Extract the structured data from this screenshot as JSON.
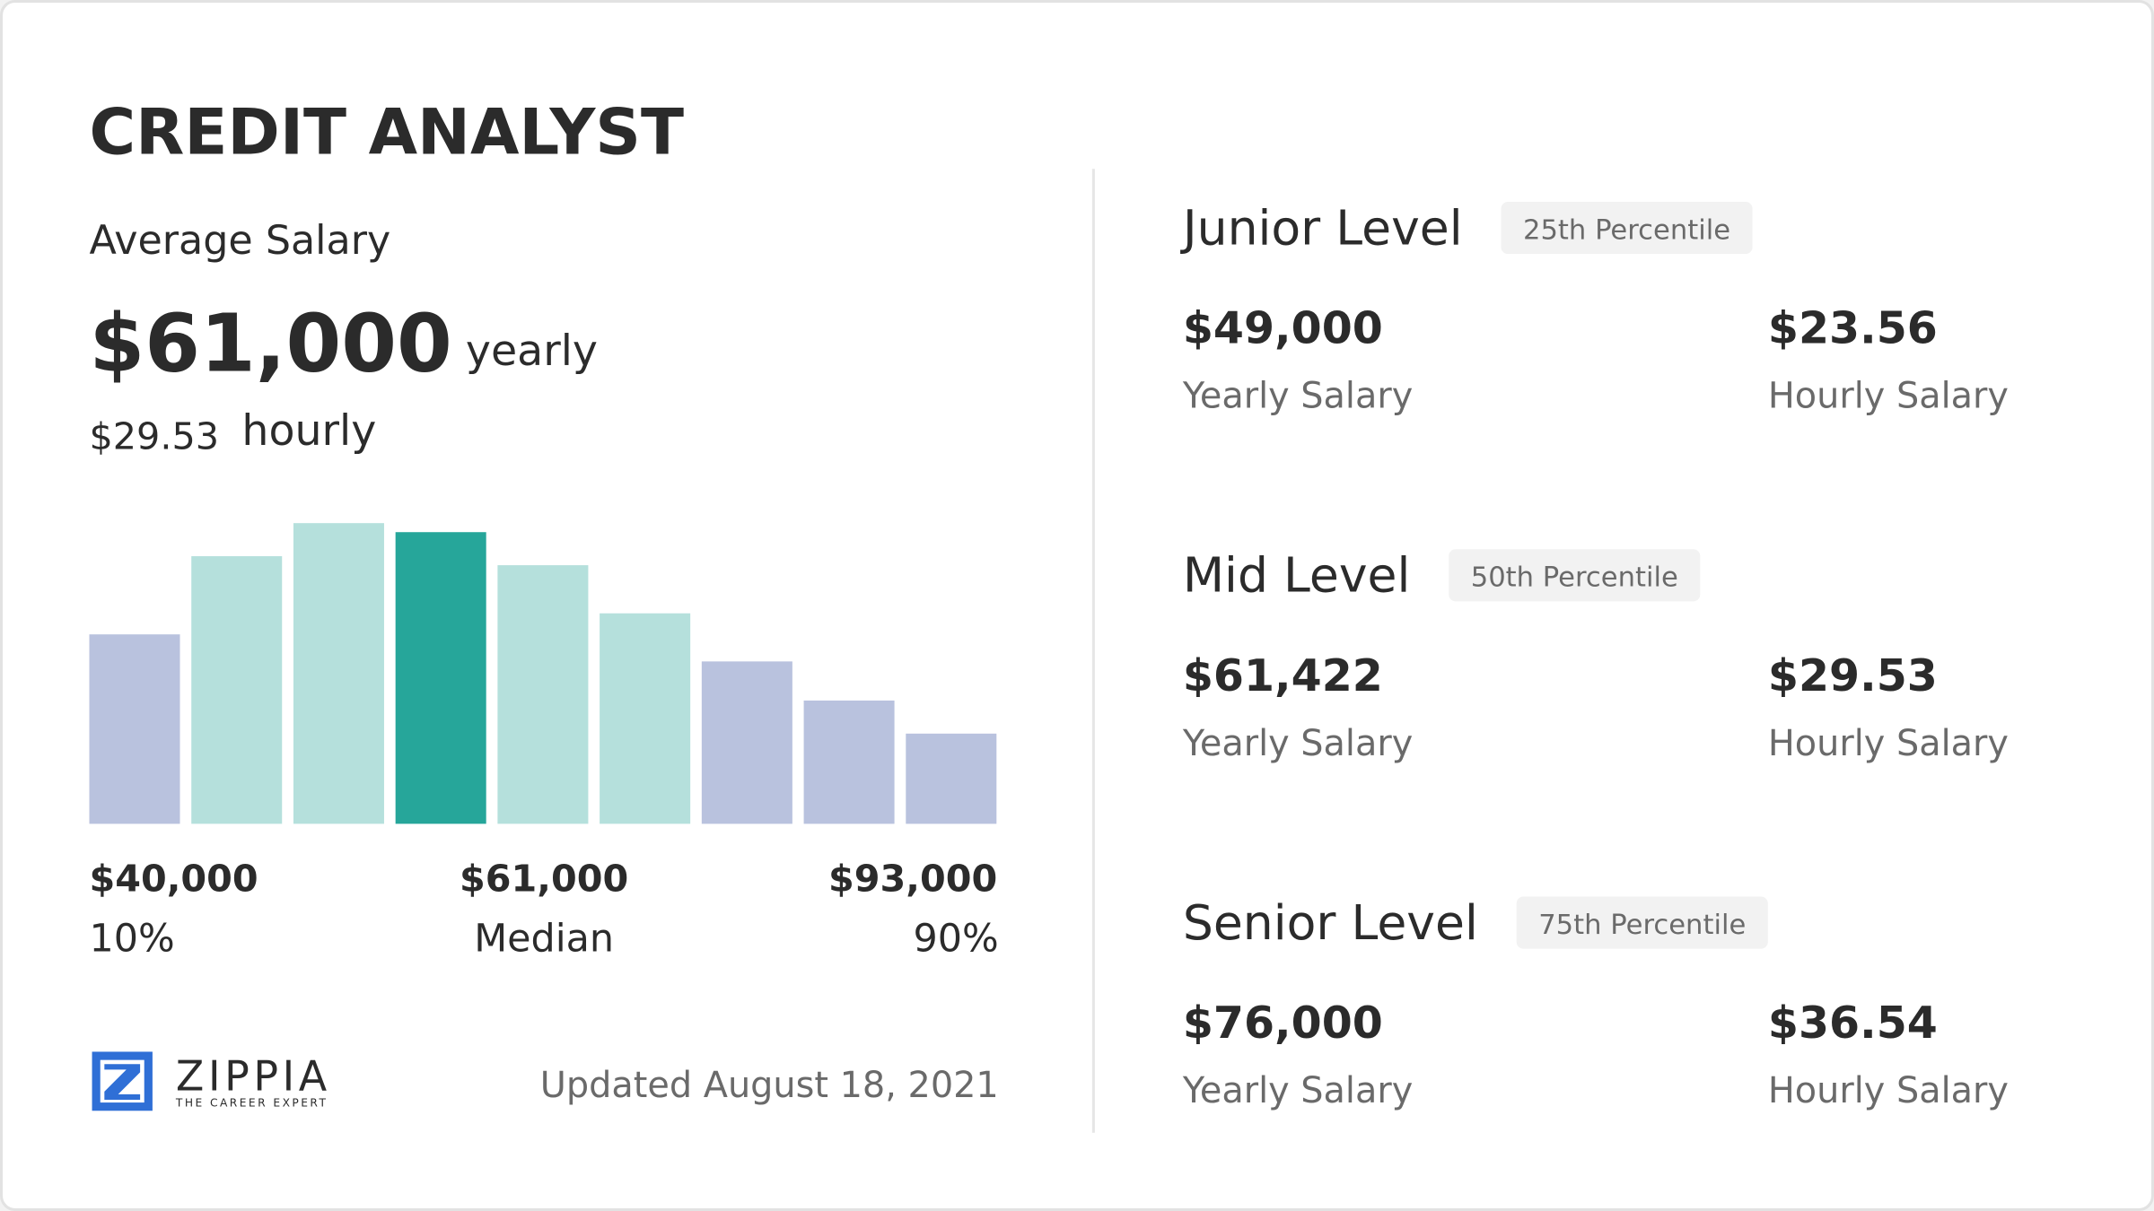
{
  "header": {
    "title": "CREDIT ANALYST"
  },
  "average": {
    "label": "Average Salary",
    "yearly": "$61,000",
    "yearly_unit": "yearly",
    "hourly": "$29.53",
    "hourly_unit": "hourly"
  },
  "chart_data": {
    "type": "bar",
    "values": [
      63,
      89,
      100,
      97,
      86,
      70,
      54,
      41,
      30
    ],
    "colors": [
      "#b9c2de",
      "#b5e0dc",
      "#b5e0dc",
      "#26a69a",
      "#b5e0dc",
      "#b5e0dc",
      "#b9c2de",
      "#b9c2de",
      "#b9c2de"
    ],
    "ylim": [
      0,
      100
    ]
  },
  "range_labels": [
    {
      "amount": "$40,000",
      "label": "10%"
    },
    {
      "amount": "$61,000",
      "label": "Median"
    },
    {
      "amount": "$93,000",
      "label": "90%"
    }
  ],
  "footer": {
    "logo": "ZIPPIA",
    "tagline": "THE CAREER EXPERT",
    "updated": "Updated August 18, 2021"
  },
  "levels": [
    {
      "name": "Junior Level",
      "percentile": "25th Percentile",
      "yearly": "$49,000",
      "yearly_label": "Yearly Salary",
      "hourly": "$23.56",
      "hourly_label": "Hourly Salary"
    },
    {
      "name": "Mid Level",
      "percentile": "50th Percentile",
      "yearly": "$61,422",
      "yearly_label": "Yearly Salary",
      "hourly": "$29.53",
      "hourly_label": "Hourly Salary"
    },
    {
      "name": "Senior Level",
      "percentile": "75th Percentile",
      "yearly": "$76,000",
      "yearly_label": "Yearly Salary",
      "hourly": "$36.54",
      "hourly_label": "Hourly Salary"
    }
  ]
}
